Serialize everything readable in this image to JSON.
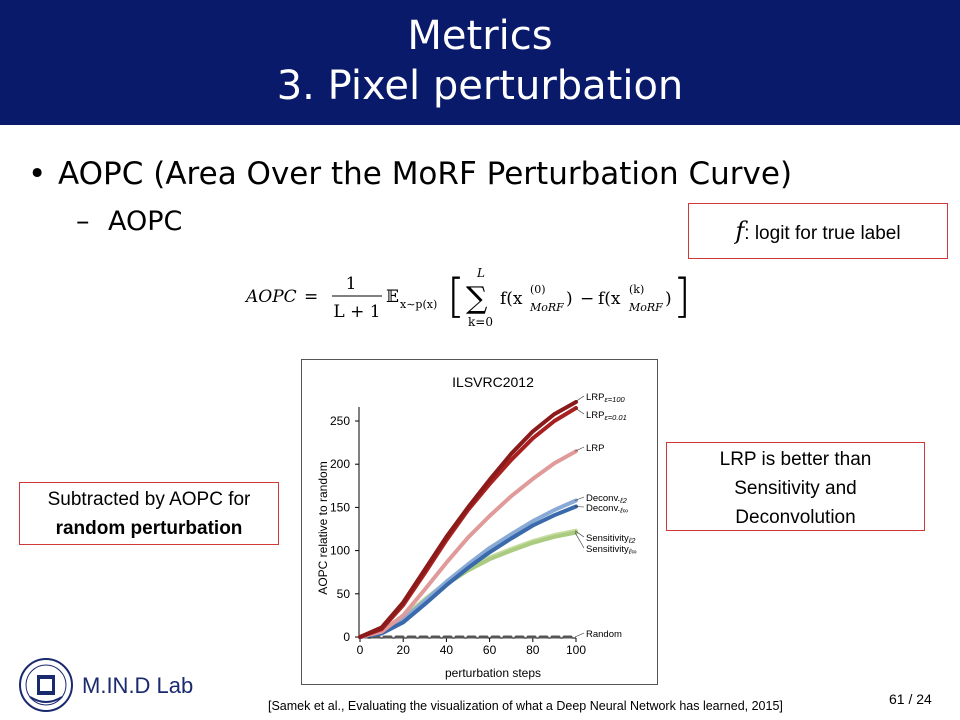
{
  "header": {
    "title_line1": "Metrics",
    "title_line2": "3. Pixel perturbation",
    "bg_color": "#0a1a6a"
  },
  "bullets": {
    "level1": "AOPC (Area Over the MoRF Perturbation Curve)",
    "level2": "AOPC"
  },
  "formula": {
    "lhs": "AOPC",
    "frac_num": "1",
    "frac_den": "L + 1",
    "expectation": "𝔼",
    "expectation_sub": "x∼p(x)",
    "sum_top": "L",
    "sum_bottom": "k=0",
    "term1": "f(x",
    "term1_sup": "(0)",
    "term1_sub": "MoRF",
    "term2": "f(x",
    "term2_sup": "(k)",
    "term2_sub": "MoRF"
  },
  "boxes": {
    "f_def_symbol": "f",
    "f_def_text": ": logit for true label",
    "subtract_line1": "Subtracted by AOPC for",
    "subtract_line2": "random perturbation",
    "lrp_line1": "LRP is better than",
    "lrp_line2": "Sensitivity and",
    "lrp_line3": "Deconvolution",
    "border_color": "#d0393a"
  },
  "chart_data": {
    "type": "line",
    "title": "ILSVRC2012",
    "xlabel": "perturbation steps",
    "ylabel": "AOPC relative to random",
    "xlim": [
      0,
      100
    ],
    "ylim": [
      0,
      250
    ],
    "xticks": [
      0,
      20,
      40,
      60,
      80,
      100
    ],
    "yticks": [
      0,
      50,
      100,
      150,
      200,
      250
    ],
    "x": [
      0,
      10,
      20,
      30,
      40,
      50,
      60,
      70,
      80,
      90,
      100
    ],
    "series": [
      {
        "name": "LRP ε=100",
        "label_main": "LRP",
        "label_sub": "ε=100",
        "color": "#8b1a1a",
        "values": [
          0,
          11,
          40,
          78,
          116,
          150,
          182,
          212,
          238,
          258,
          272
        ]
      },
      {
        "name": "LRP ε=0.01",
        "label_main": "LRP",
        "label_sub": "ε=0.01",
        "color": "#a82020",
        "values": [
          0,
          9,
          37,
          74,
          112,
          147,
          177,
          205,
          230,
          250,
          265
        ]
      },
      {
        "name": "LRP",
        "label_main": "LRP",
        "label_sub": "",
        "color": "#e09a9a",
        "values": [
          0,
          6,
          25,
          55,
          86,
          115,
          140,
          163,
          183,
          201,
          215
        ]
      },
      {
        "name": "Deconv. ℓ2",
        "label_main": "Deconv.",
        "label_sub": "ℓ2",
        "color": "#8aaad6",
        "values": [
          0,
          5,
          20,
          42,
          64,
          84,
          103,
          119,
          134,
          147,
          158
        ]
      },
      {
        "name": "Deconv. ℓ∞",
        "label_main": "Deconv.",
        "label_sub": "ℓ∞",
        "color": "#3a6aac",
        "values": [
          0,
          4,
          17,
          38,
          60,
          80,
          98,
          114,
          129,
          141,
          151
        ]
      },
      {
        "name": "Sensitivity ℓ2",
        "label_main": "Sensitivity",
        "label_sub": "ℓ2",
        "color": "#c6dca0",
        "values": [
          0,
          6,
          23,
          44,
          63,
          79,
          92,
          102,
          111,
          118,
          123
        ]
      },
      {
        "name": "Sensitivity ℓ∞",
        "label_main": "Sensitivity",
        "label_sub": "ℓ∞",
        "color": "#aacb80",
        "values": [
          0,
          6,
          22,
          42,
          61,
          77,
          90,
          100,
          109,
          116,
          121
        ]
      },
      {
        "name": "Random",
        "label_main": "Random",
        "label_sub": "",
        "color": "#555555",
        "dashed": true,
        "values": [
          0,
          0,
          0,
          0,
          0,
          0,
          0,
          0,
          0,
          0,
          0
        ]
      }
    ],
    "grid": false,
    "legend": "inline-right"
  },
  "footer": {
    "lab_name": "M.IN.D Lab",
    "citation": "[Samek et al., Evaluating the visualization of what a Deep Neural Network has learned, 2015]",
    "page_number": "61 / 24"
  }
}
